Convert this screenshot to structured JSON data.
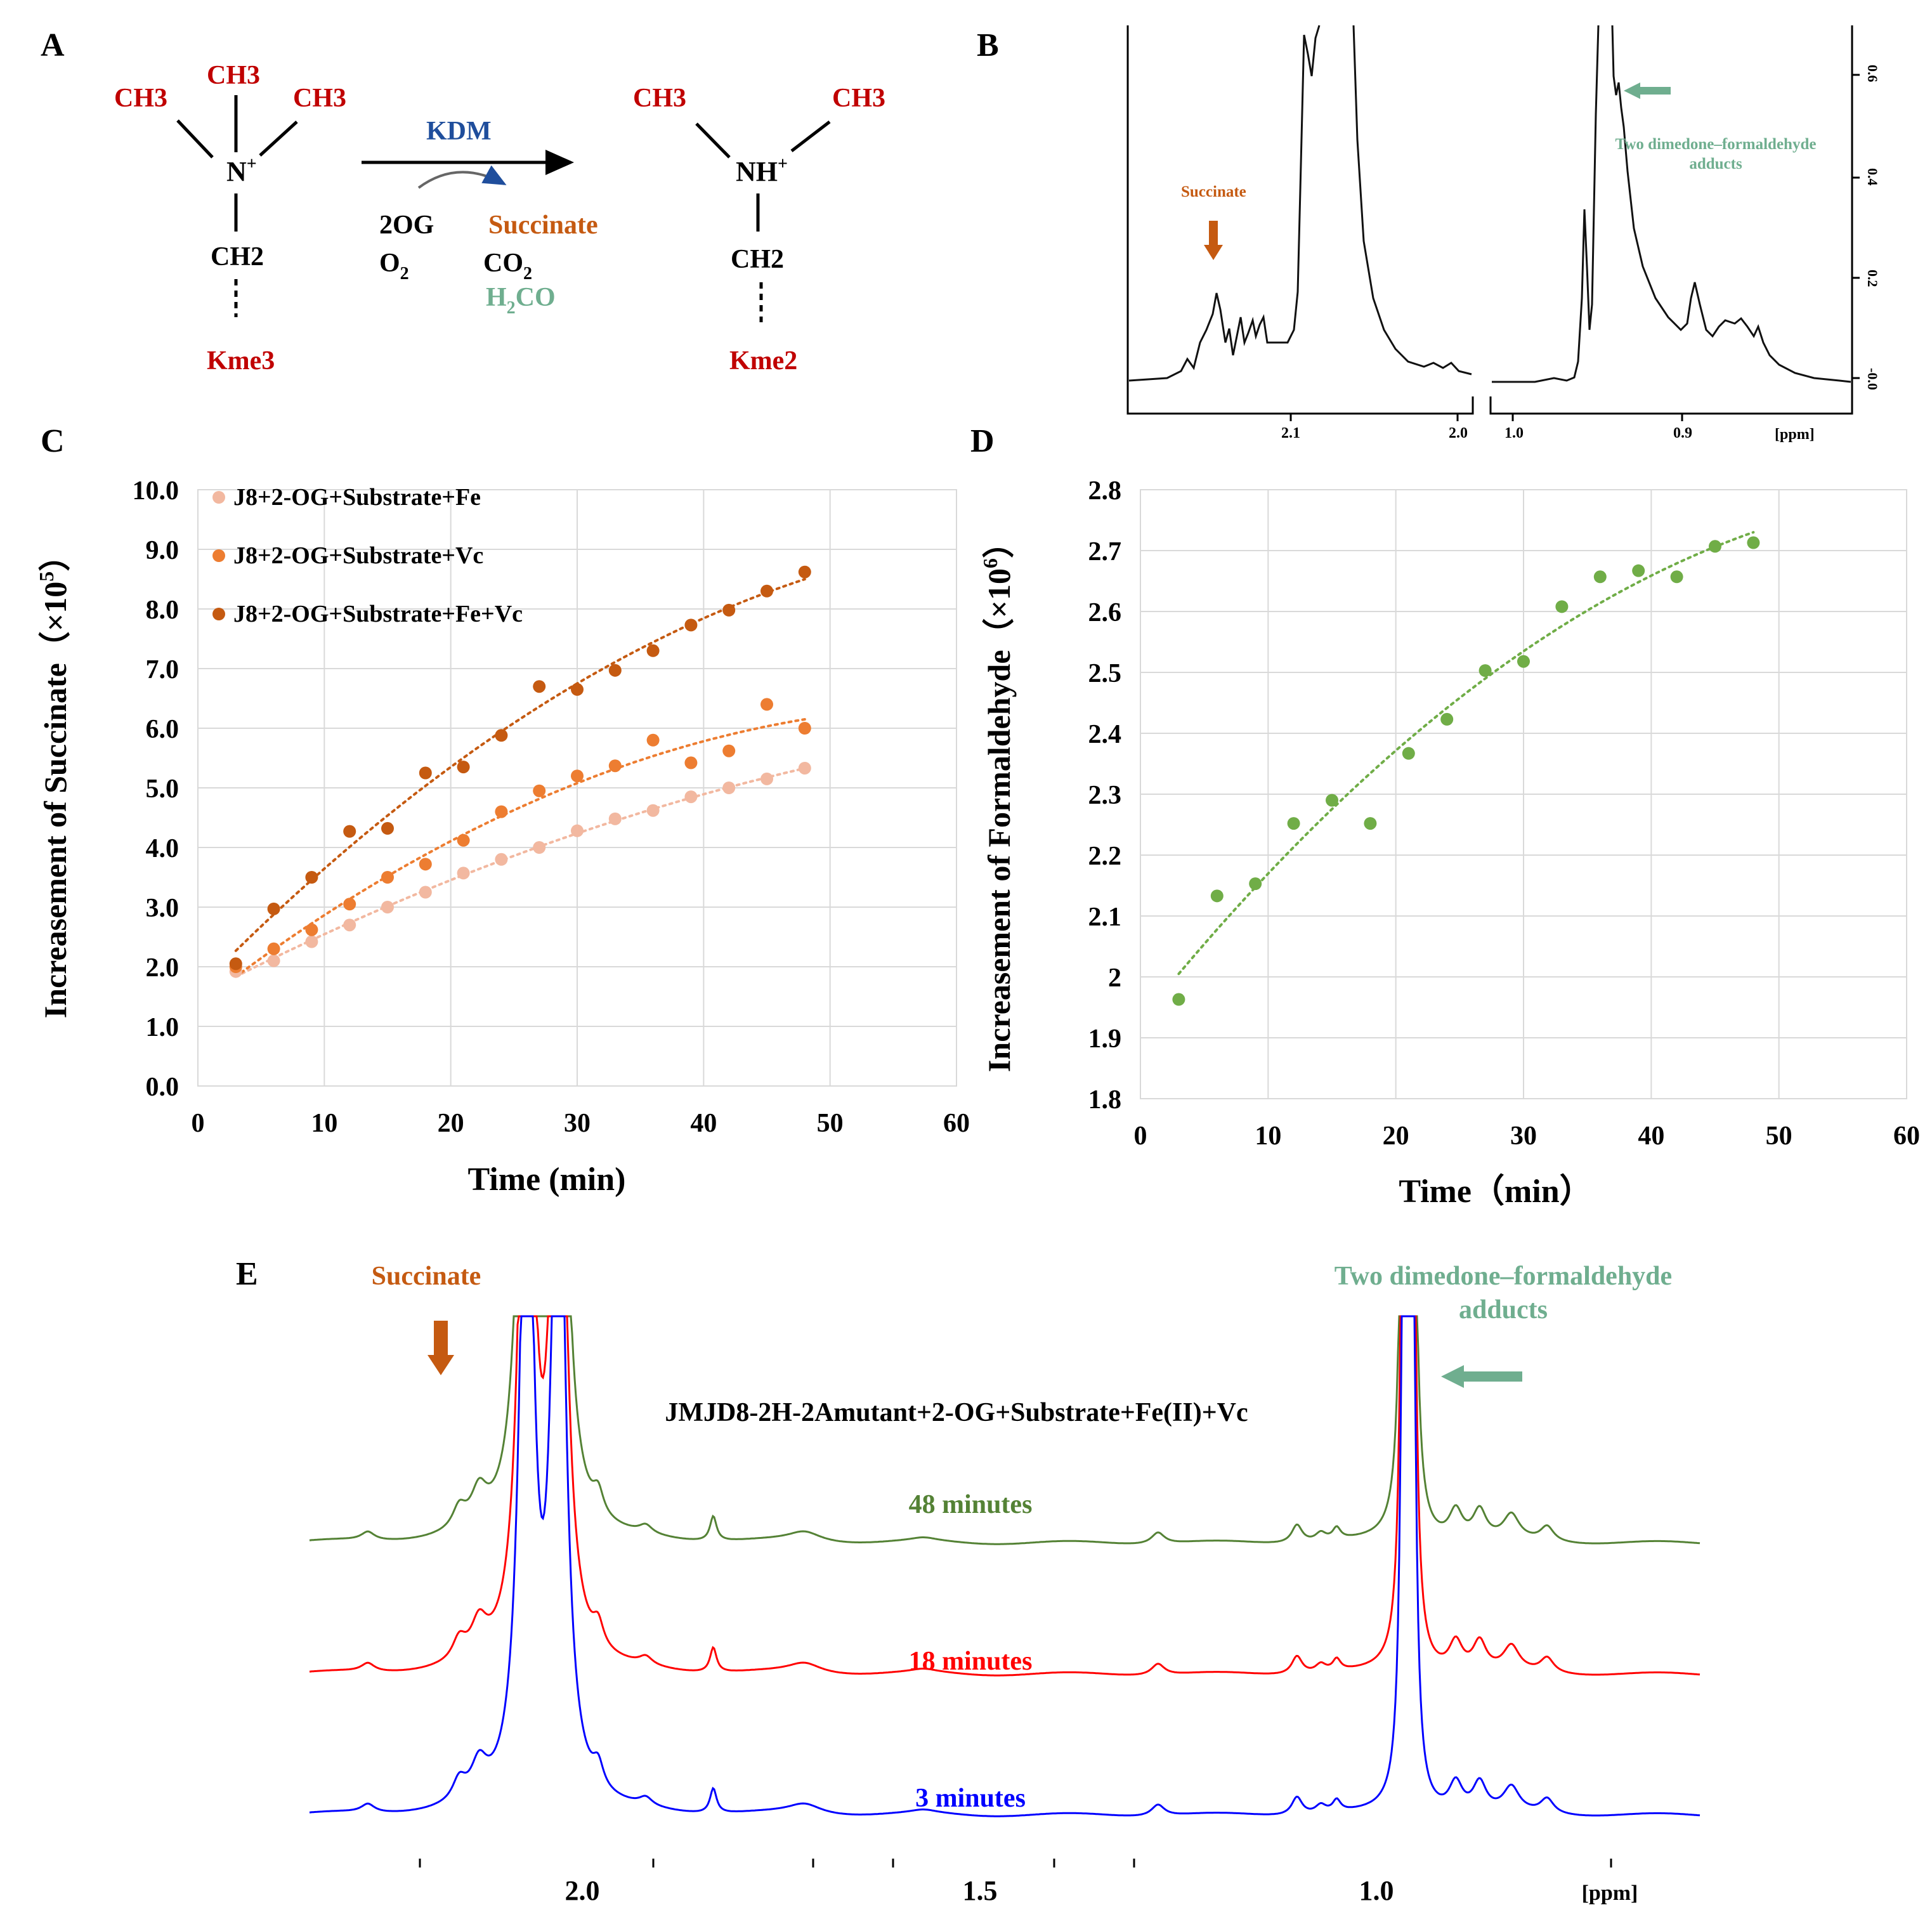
{
  "colors": {
    "red": "#c00000",
    "blue_kdm": "#1f4e9c",
    "orange": "#c55a11",
    "teal": "#6fae8f",
    "gridline": "#d9d9d9",
    "series_light": "#f2b8a0",
    "series_mid": "#ed7d31",
    "series_dark": "#c55a11",
    "green_points": "#70ad47",
    "nmr_green": "#548235",
    "nmr_red": "#ff0000",
    "nmr_blue": "#0000ff"
  },
  "panel_labels": {
    "a": "A",
    "b": "B",
    "c": "C",
    "d": "D",
    "e": "E"
  },
  "panelA": {
    "methyl": "CH3",
    "n_plus": "N",
    "n_plus_sup": "+",
    "nh_plus": "NH",
    "nh_plus_sup": "+",
    "ch2": "CH2",
    "enzyme": "KDM",
    "cosub_2og": "2OG",
    "o2": "O",
    "o2_sub": "2",
    "succinate": "Succinate",
    "co2": "CO",
    "co2_sub": "2",
    "h2co_h": "H",
    "h2co_sub": "2",
    "h2co_rest": "CO",
    "substrate_label": "Kme3",
    "product_label": "Kme2"
  },
  "panelB": {
    "succinate_label": "Succinate",
    "adduct_label_line1": "Two dimedone–formaldehyde",
    "adduct_label_line2": "adducts",
    "x_ticks_left": [
      "2.1",
      "2.0"
    ],
    "x_ticks_right": [
      "1.0",
      "0.9"
    ],
    "x_unit": "[ppm]",
    "y_ticks": [
      "-0.0",
      "0.2",
      "0.4",
      "0.6"
    ]
  },
  "chart_data": [
    {
      "panel": "C",
      "type": "scatter",
      "xlabel": "Time (min)",
      "ylabel": "Increasement of Succinate",
      "ylabel_unit": "（×10",
      "ylabel_exp": "5",
      "ylabel_close": "）",
      "xlim": [
        0,
        60
      ],
      "ylim": [
        0,
        10
      ],
      "x_ticks": [
        "0",
        "10",
        "20",
        "30",
        "40",
        "50",
        "60"
      ],
      "y_ticks": [
        "0.0",
        "1.0",
        "2.0",
        "3.0",
        "4.0",
        "5.0",
        "6.0",
        "7.0",
        "8.0",
        "9.0",
        "10.0"
      ],
      "grid": true,
      "trendline": "dotted polynomial",
      "x": [
        3,
        6,
        9,
        12,
        15,
        18,
        21,
        24,
        27,
        30,
        33,
        36,
        39,
        42,
        45,
        48
      ],
      "series": [
        {
          "name": "J8+2-OG+Substrate+Fe",
          "color": "#f2b8a0",
          "values": [
            1.92,
            2.1,
            2.42,
            2.7,
            3.0,
            3.25,
            3.57,
            3.8,
            4.0,
            4.28,
            4.48,
            4.62,
            4.85,
            5.0,
            5.15,
            5.33
          ]
        },
        {
          "name": "J8+2-OG+Substrate+Vc",
          "color": "#ed7d31",
          "values": [
            2.0,
            2.3,
            2.62,
            3.05,
            3.5,
            3.72,
            4.12,
            4.6,
            4.95,
            5.2,
            5.37,
            5.8,
            5.42,
            5.62,
            6.4,
            6.0
          ]
        },
        {
          "name": "J8+2-OG+Substrate+Fe+Vc",
          "color": "#c55a11",
          "values": [
            2.05,
            2.97,
            3.5,
            4.27,
            4.32,
            5.25,
            5.35,
            5.88,
            6.7,
            6.65,
            6.97,
            7.3,
            7.73,
            7.98,
            8.3,
            8.62
          ]
        }
      ]
    },
    {
      "panel": "D",
      "type": "scatter",
      "xlabel": "Time（min）",
      "ylabel": "Increasement of Formaldehyde",
      "ylabel_unit": "（×10",
      "ylabel_exp": "6",
      "ylabel_close": "）",
      "xlim": [
        0,
        60
      ],
      "ylim": [
        1.8,
        2.8
      ],
      "x_ticks": [
        "0",
        "10",
        "20",
        "30",
        "40",
        "50",
        "60"
      ],
      "y_ticks": [
        "1.8",
        "1.9",
        "2",
        "2.1",
        "2.2",
        "2.3",
        "2.4",
        "2.5",
        "2.6",
        "2.7",
        "2.8"
      ],
      "grid": true,
      "trendline": "dotted polynomial",
      "x": [
        3,
        6,
        9,
        12,
        15,
        18,
        21,
        24,
        27,
        30,
        33,
        36,
        39,
        42,
        45,
        48
      ],
      "series": [
        {
          "name": "Formaldehyde",
          "color": "#70ad47",
          "values": [
            1.963,
            2.133,
            2.153,
            2.252,
            2.29,
            2.252,
            2.367,
            2.423,
            2.503,
            2.518,
            2.608,
            2.657,
            2.667,
            2.657,
            2.707,
            2.713
          ]
        }
      ]
    }
  ],
  "panelE": {
    "succinate_label": "Succinate",
    "adduct_label_line1": "Two dimedone–formaldehyde",
    "adduct_label_line2": "adducts",
    "title": "JMJD8-2H-2Amutant+2-OG+Substrate+Fe(II)+Vc",
    "trace_labels": [
      "48 minutes",
      "18 minutes",
      "3  minutes"
    ],
    "x_ticks": [
      "2.0",
      "1.5",
      "1.0"
    ],
    "x_unit": "[ppm]"
  }
}
